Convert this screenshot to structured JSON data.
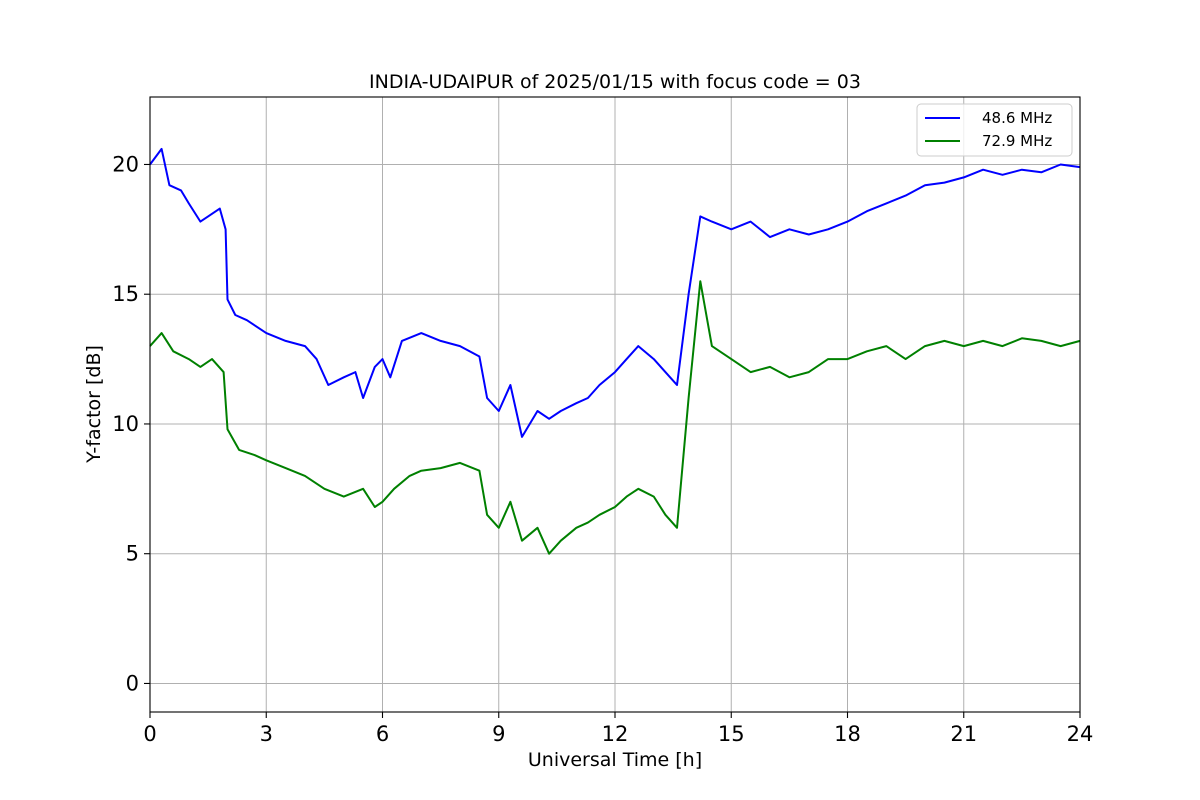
{
  "chart_data": {
    "type": "line",
    "title": "INDIA-UDAIPUR of 2025/01/15 with focus code = 03",
    "xlabel": "Universal Time [h]",
    "ylabel": "Y-factor [dB]",
    "xlim": [
      0,
      24
    ],
    "ylim": [
      -1.1,
      22.6
    ],
    "xticks": [
      0,
      3,
      6,
      9,
      12,
      15,
      18,
      21,
      24
    ],
    "yticks": [
      0,
      5,
      10,
      15,
      20
    ],
    "grid": true,
    "legend_position": "top-right",
    "series": [
      {
        "name": "48.6 MHz",
        "color": "#0000ff",
        "points": [
          [
            0.0,
            20.0
          ],
          [
            0.3,
            20.6
          ],
          [
            0.5,
            19.2
          ],
          [
            0.8,
            19.0
          ],
          [
            1.0,
            18.5
          ],
          [
            1.3,
            17.8
          ],
          [
            1.5,
            18.0
          ],
          [
            1.8,
            18.3
          ],
          [
            1.95,
            17.5
          ],
          [
            2.0,
            14.8
          ],
          [
            2.2,
            14.2
          ],
          [
            2.5,
            14.0
          ],
          [
            3.0,
            13.5
          ],
          [
            3.5,
            13.2
          ],
          [
            4.0,
            13.0
          ],
          [
            4.3,
            12.5
          ],
          [
            4.6,
            11.5
          ],
          [
            5.0,
            11.8
          ],
          [
            5.3,
            12.0
          ],
          [
            5.5,
            11.0
          ],
          [
            5.8,
            12.2
          ],
          [
            6.0,
            12.5
          ],
          [
            6.2,
            11.8
          ],
          [
            6.5,
            13.2
          ],
          [
            7.0,
            13.5
          ],
          [
            7.5,
            13.2
          ],
          [
            8.0,
            13.0
          ],
          [
            8.5,
            12.6
          ],
          [
            8.7,
            11.0
          ],
          [
            9.0,
            10.5
          ],
          [
            9.3,
            11.5
          ],
          [
            9.6,
            9.5
          ],
          [
            10.0,
            10.5
          ],
          [
            10.3,
            10.2
          ],
          [
            10.6,
            10.5
          ],
          [
            11.0,
            10.8
          ],
          [
            11.3,
            11.0
          ],
          [
            11.6,
            11.5
          ],
          [
            12.0,
            12.0
          ],
          [
            12.3,
            12.5
          ],
          [
            12.6,
            13.0
          ],
          [
            13.0,
            12.5
          ],
          [
            13.3,
            12.0
          ],
          [
            13.6,
            11.5
          ],
          [
            13.9,
            15.0
          ],
          [
            14.2,
            18.0
          ],
          [
            14.5,
            17.8
          ],
          [
            15.0,
            17.5
          ],
          [
            15.5,
            17.8
          ],
          [
            16.0,
            17.2
          ],
          [
            16.5,
            17.5
          ],
          [
            17.0,
            17.3
          ],
          [
            17.5,
            17.5
          ],
          [
            18.0,
            17.8
          ],
          [
            18.5,
            18.2
          ],
          [
            19.0,
            18.5
          ],
          [
            19.5,
            18.8
          ],
          [
            20.0,
            19.2
          ],
          [
            20.5,
            19.3
          ],
          [
            21.0,
            19.5
          ],
          [
            21.5,
            19.8
          ],
          [
            22.0,
            19.6
          ],
          [
            22.5,
            19.8
          ],
          [
            23.0,
            19.7
          ],
          [
            23.5,
            20.0
          ],
          [
            24.0,
            19.9
          ]
        ]
      },
      {
        "name": "72.9 MHz",
        "color": "#008000",
        "points": [
          [
            0.0,
            13.0
          ],
          [
            0.3,
            13.5
          ],
          [
            0.6,
            12.8
          ],
          [
            1.0,
            12.5
          ],
          [
            1.3,
            12.2
          ],
          [
            1.6,
            12.5
          ],
          [
            1.9,
            12.0
          ],
          [
            2.0,
            9.8
          ],
          [
            2.3,
            9.0
          ],
          [
            2.7,
            8.8
          ],
          [
            3.0,
            8.6
          ],
          [
            3.5,
            8.3
          ],
          [
            4.0,
            8.0
          ],
          [
            4.5,
            7.5
          ],
          [
            5.0,
            7.2
          ],
          [
            5.5,
            7.5
          ],
          [
            5.8,
            6.8
          ],
          [
            6.0,
            7.0
          ],
          [
            6.3,
            7.5
          ],
          [
            6.7,
            8.0
          ],
          [
            7.0,
            8.2
          ],
          [
            7.5,
            8.3
          ],
          [
            8.0,
            8.5
          ],
          [
            8.5,
            8.2
          ],
          [
            8.7,
            6.5
          ],
          [
            9.0,
            6.0
          ],
          [
            9.3,
            7.0
          ],
          [
            9.6,
            5.5
          ],
          [
            10.0,
            6.0
          ],
          [
            10.3,
            5.0
          ],
          [
            10.6,
            5.5
          ],
          [
            11.0,
            6.0
          ],
          [
            11.3,
            6.2
          ],
          [
            11.6,
            6.5
          ],
          [
            12.0,
            6.8
          ],
          [
            12.3,
            7.2
          ],
          [
            12.6,
            7.5
          ],
          [
            13.0,
            7.2
          ],
          [
            13.3,
            6.5
          ],
          [
            13.6,
            6.0
          ],
          [
            13.9,
            11.0
          ],
          [
            14.2,
            15.5
          ],
          [
            14.5,
            13.0
          ],
          [
            15.0,
            12.5
          ],
          [
            15.5,
            12.0
          ],
          [
            16.0,
            12.2
          ],
          [
            16.5,
            11.8
          ],
          [
            17.0,
            12.0
          ],
          [
            17.5,
            12.5
          ],
          [
            18.0,
            12.5
          ],
          [
            18.5,
            12.8
          ],
          [
            19.0,
            13.0
          ],
          [
            19.5,
            12.5
          ],
          [
            20.0,
            13.0
          ],
          [
            20.5,
            13.2
          ],
          [
            21.0,
            13.0
          ],
          [
            21.5,
            13.2
          ],
          [
            22.0,
            13.0
          ],
          [
            22.5,
            13.3
          ],
          [
            23.0,
            13.2
          ],
          [
            23.5,
            13.0
          ],
          [
            24.0,
            13.2
          ]
        ]
      }
    ]
  }
}
